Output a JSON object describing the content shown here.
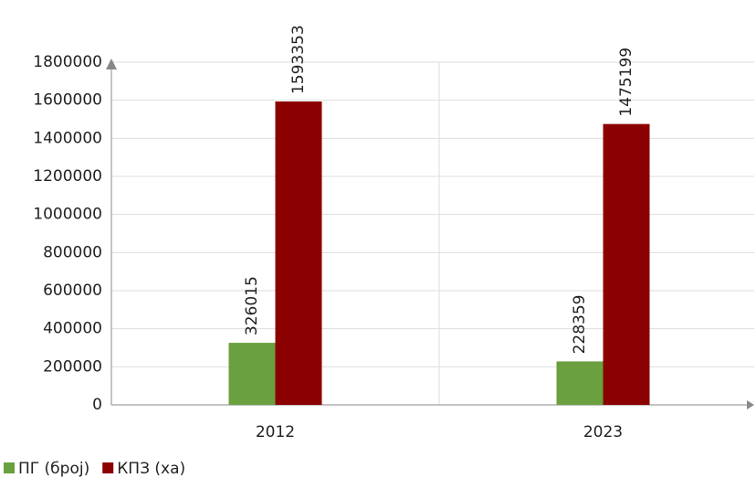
{
  "chart_data": {
    "type": "bar",
    "categories": [
      "2012",
      "2023"
    ],
    "series": [
      {
        "name": "ПГ (број)",
        "color": "#6aa03f",
        "values": [
          326015,
          228359
        ]
      },
      {
        "name": "КПЗ (ха)",
        "color": "#8b0000",
        "values": [
          1593353,
          1475199
        ]
      }
    ],
    "ylim": [
      0,
      1800000
    ],
    "yticks": [
      0,
      200000,
      400000,
      600000,
      800000,
      1000000,
      1200000,
      1400000,
      1600000,
      1800000
    ],
    "grid": true,
    "legend": "bottom-left"
  }
}
